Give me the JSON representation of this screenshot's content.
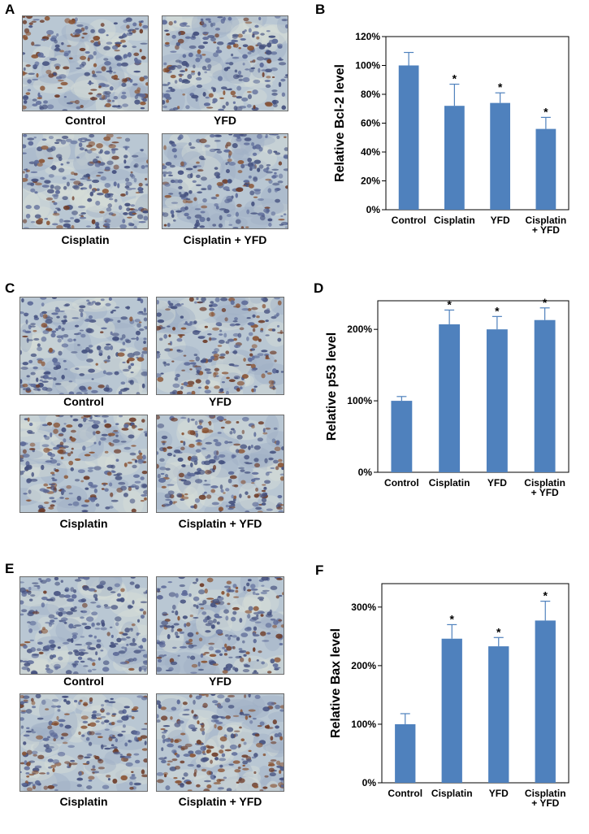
{
  "panel_letters": [
    "A",
    "B",
    "C",
    "D",
    "E",
    "F"
  ],
  "micrographs": {
    "A": [
      "Control",
      "YFD",
      "Cisplatin",
      "Cisplatin + YFD"
    ],
    "C": [
      "Control",
      "YFD",
      "Cisplatin",
      "Cisplatin + YFD"
    ],
    "E": [
      "Control",
      "YFD",
      "Cisplatin",
      "Cisplatin + YFD"
    ]
  },
  "chart_data": [
    {
      "type": "bar",
      "panel": "B",
      "ylabel": "Relative Bcl-2 level",
      "categories": [
        "Control",
        "Cisplatin",
        "YFD",
        "Cisplatin\n+ YFD"
      ],
      "values": [
        100,
        72,
        74,
        56
      ],
      "errors": [
        9,
        15,
        7,
        8
      ],
      "significance": [
        "",
        "*",
        "*",
        "*"
      ],
      "ylim": [
        0,
        120
      ],
      "yticks": [
        0,
        20,
        40,
        60,
        80,
        100,
        120
      ],
      "ytick_labels": [
        "0%",
        "20%",
        "40%",
        "60%",
        "80%",
        "100%",
        "120%"
      ],
      "bar_color": "#4f81bd",
      "grid": false
    },
    {
      "type": "bar",
      "panel": "D",
      "ylabel": "Relative p53 level",
      "categories": [
        "Control",
        "Cisplatin",
        "YFD",
        "Cisplatin\n+ YFD"
      ],
      "values": [
        100,
        207,
        200,
        213
      ],
      "errors": [
        6,
        20,
        18,
        17
      ],
      "significance": [
        "",
        "*",
        "*",
        "*"
      ],
      "ylim": [
        0,
        240
      ],
      "yticks": [
        0,
        100,
        200
      ],
      "ytick_labels": [
        "0%",
        "100%",
        "200%"
      ],
      "bar_color": "#4f81bd",
      "grid": false
    },
    {
      "type": "bar",
      "panel": "F",
      "ylabel": "Relative Bax level",
      "categories": [
        "Control",
        "Cisplatin",
        "YFD",
        "Cisplatin\n+ YFD"
      ],
      "values": [
        100,
        246,
        233,
        277
      ],
      "errors": [
        18,
        24,
        15,
        33
      ],
      "significance": [
        "",
        "*",
        "*",
        "*"
      ],
      "ylim": [
        0,
        340
      ],
      "yticks": [
        0,
        100,
        200,
        300
      ],
      "ytick_labels": [
        "0%",
        "100%",
        "200%",
        "300%"
      ],
      "bar_color": "#4f81bd",
      "grid": false
    }
  ]
}
